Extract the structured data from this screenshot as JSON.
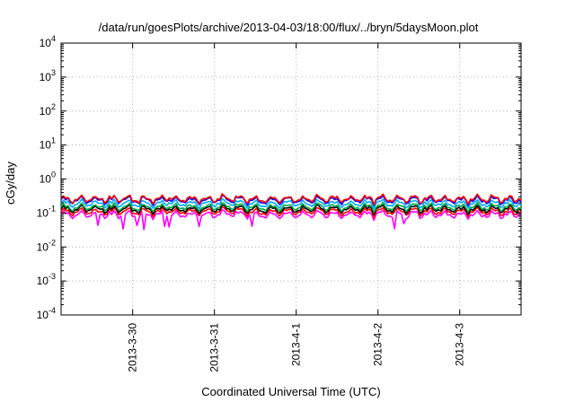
{
  "chart_data": {
    "type": "line",
    "title": "/data/run/goesPlots/archive/2013-04-03/18:00/flux/../bryn/5daysMoon.plot",
    "xlabel": "Coordinated Universal Time (UTC)",
    "ylabel": "cGy/day",
    "yscale": "log",
    "ylim": [
      0.0001,
      10000
    ],
    "y_ticks": [
      {
        "base": "10",
        "exp": "-4",
        "value": 0.0001
      },
      {
        "base": "10",
        "exp": "-3",
        "value": 0.001
      },
      {
        "base": "10",
        "exp": "-2",
        "value": 0.01
      },
      {
        "base": "10",
        "exp": "-1",
        "value": 0.1
      },
      {
        "base": "10",
        "exp": "0",
        "value": 1
      },
      {
        "base": "10",
        "exp": "1",
        "value": 10
      },
      {
        "base": "10",
        "exp": "2",
        "value": 100
      },
      {
        "base": "10",
        "exp": "3",
        "value": 1000
      },
      {
        "base": "10",
        "exp": "4",
        "value": 10000
      }
    ],
    "xlim": [
      "2013-03-29 03:00",
      "2013-04-03 18:00"
    ],
    "x_ticks": [
      {
        "label": "2013-3-30",
        "value": "2013-03-30 00:00"
      },
      {
        "label": "2013-3-31",
        "value": "2013-03-31 00:00"
      },
      {
        "label": "2013-4-1",
        "value": "2013-04-01 00:00"
      },
      {
        "label": "2013-4-2",
        "value": "2013-04-02 00:00"
      },
      {
        "label": "2013-4-3",
        "value": "2013-04-03 00:00"
      }
    ],
    "grid": true,
    "series": [
      {
        "color": "#ff00ff",
        "base": 0.09,
        "dip_to": 0.035
      },
      {
        "color": "#ff0000",
        "base": 0.11
      },
      {
        "color": "#000000",
        "base": 0.13
      },
      {
        "color": "#00aa44",
        "base": 0.15
      },
      {
        "color": "#00aaff",
        "base": 0.19
      },
      {
        "color": "#0000ff",
        "base": 0.24
      },
      {
        "color": "#ff0000",
        "base": 0.26
      }
    ]
  }
}
